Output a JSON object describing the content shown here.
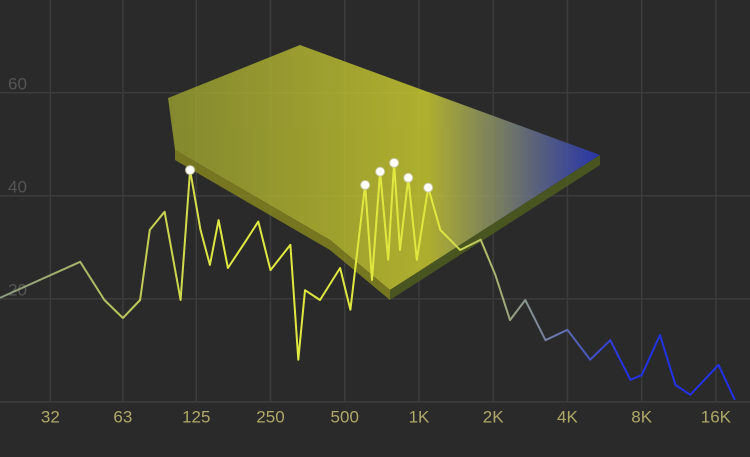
{
  "chart_data": {
    "type": "line",
    "log_x": true,
    "grid": true,
    "xlim": [
      20,
      22000
    ],
    "ylim": [
      0,
      78
    ],
    "xticks": [
      32,
      63,
      125,
      250,
      500,
      {
        "value": 1000,
        "label": "1K"
      },
      {
        "value": 2000,
        "label": "2K"
      },
      {
        "value": 4000,
        "label": "4K"
      },
      {
        "value": 8000,
        "label": "8K"
      },
      {
        "value": 16000,
        "label": "16K"
      }
    ],
    "yticks": [
      20,
      40,
      60
    ],
    "colors": [
      "#8a9a80",
      "#e0e840",
      "#2232e8"
    ],
    "x": [
      20,
      42.3,
      53,
      63,
      74,
      81,
      93,
      108,
      118,
      130,
      142,
      154,
      168,
      197,
      223,
      250,
      301,
      324,
      345,
      397,
      479,
      527,
      605,
      645,
      696,
      750,
      793,
      838,
      905,
      980,
      1090,
      1220,
      1470,
      1780,
      2040,
      2340,
      2700,
      3260,
      4000,
      4950,
      5970,
      7200,
      8000,
      9490,
      10970,
      12600,
      16400,
      19100
    ],
    "values": [
      20.2,
      27.2,
      19.8,
      16.3,
      19.8,
      33.4,
      36.9,
      19.8,
      45,
      33.4,
      26.6,
      35.3,
      26,
      31,
      35,
      25.6,
      30.5,
      8.2,
      21.7,
      19.8,
      26,
      17.9,
      42.1,
      23.7,
      44.7,
      27.6,
      46.4,
      29.5,
      43.5,
      27.6,
      41.6,
      33.4,
      29.5,
      31.5,
      24.7,
      15.9,
      19.8,
      12,
      14,
      8.2,
      12,
      4.3,
      5.2,
      13,
      3.3,
      1.4,
      7.2,
      0.4
    ],
    "peaks": {
      "x": [
        118,
        605,
        696,
        793,
        905,
        1090
      ],
      "values": [
        45,
        42.1,
        44.7,
        46.4,
        43.5,
        41.6
      ]
    }
  }
}
